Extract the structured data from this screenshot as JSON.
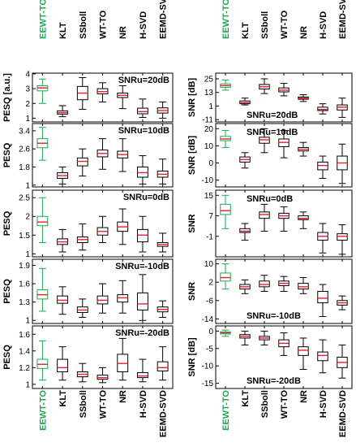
{
  "colors": {
    "highlight": "#1aa851",
    "median": "#e8202a",
    "box": "#000000"
  },
  "categories": [
    "EEWT-TO",
    "KLT",
    "SSboll",
    "WT-TO",
    "NR",
    "H-SVD",
    "EEMD-SVD"
  ],
  "highlight_index": 0,
  "chart_data": [
    {
      "type": "box",
      "column": "left",
      "row": 0,
      "ylabel": "PESQ [a.u.]",
      "annotation": "SNRu=20dB",
      "ylim": [
        0.75,
        4.05
      ],
      "yticks": [
        1,
        2,
        3,
        4
      ],
      "boxes": [
        {
          "category": "EEWT-TO",
          "min": 2.0,
          "q1": 2.85,
          "median": 3.05,
          "q3": 3.2,
          "max": 3.65
        },
        {
          "category": "KLT",
          "min": 1.1,
          "q1": 1.28,
          "median": 1.38,
          "q3": 1.5,
          "max": 1.85
        },
        {
          "category": "SSboll",
          "min": 1.6,
          "q1": 2.25,
          "median": 2.7,
          "q3": 3.15,
          "max": 3.75
        },
        {
          "category": "WT-TO",
          "min": 2.1,
          "q1": 2.65,
          "median": 2.8,
          "q3": 3.0,
          "max": 3.4
        },
        {
          "category": "NR",
          "min": 1.65,
          "q1": 2.4,
          "median": 2.55,
          "q3": 2.7,
          "max": 3.2
        },
        {
          "category": "H-SVD",
          "min": 1.05,
          "q1": 1.3,
          "median": 1.45,
          "q3": 1.68,
          "max": 2.3
        },
        {
          "category": "EEMD-SVD",
          "min": 1.0,
          "q1": 1.35,
          "median": 1.52,
          "q3": 1.7,
          "max": 2.1
        }
      ]
    },
    {
      "type": "box",
      "column": "left",
      "row": 1,
      "ylabel": "PESQ",
      "annotation": "SNRu=10dB",
      "ylim": [
        0.92,
        3.72
      ],
      "yticks": [
        1.0,
        1.8,
        2.6,
        3.4
      ],
      "boxes": [
        {
          "category": "EEWT-TO",
          "min": 2.1,
          "q1": 2.65,
          "median": 2.85,
          "q3": 3.05,
          "max": 3.55
        },
        {
          "category": "KLT",
          "min": 1.05,
          "q1": 1.3,
          "median": 1.42,
          "q3": 1.55,
          "max": 1.8
        },
        {
          "category": "SSboll",
          "min": 1.4,
          "q1": 1.85,
          "median": 2.05,
          "q3": 2.2,
          "max": 2.6
        },
        {
          "category": "WT-TO",
          "min": 1.7,
          "q1": 2.25,
          "median": 2.4,
          "q3": 2.55,
          "max": 3.05
        },
        {
          "category": "NR",
          "min": 1.6,
          "q1": 2.2,
          "median": 2.35,
          "q3": 2.5,
          "max": 3.05
        },
        {
          "category": "H-SVD",
          "min": 1.05,
          "q1": 1.35,
          "median": 1.55,
          "q3": 1.8,
          "max": 2.3
        },
        {
          "category": "EEMD-SVD",
          "min": 1.05,
          "q1": 1.35,
          "median": 1.48,
          "q3": 1.62,
          "max": 2.15
        }
      ]
    },
    {
      "type": "box",
      "column": "left",
      "row": 2,
      "ylabel": "PESQ",
      "annotation": "SNRu=0dB",
      "ylim": [
        0.92,
        2.7
      ],
      "yticks": [
        1.0,
        1.5,
        2.0,
        2.5
      ],
      "boxes": [
        {
          "category": "EEWT-TO",
          "min": 1.3,
          "q1": 1.75,
          "median": 1.85,
          "q3": 2.0,
          "max": 2.5
        },
        {
          "category": "KLT",
          "min": 1.05,
          "q1": 1.25,
          "median": 1.32,
          "q3": 1.4,
          "max": 1.65
        },
        {
          "category": "SSboll",
          "min": 1.1,
          "q1": 1.3,
          "median": 1.38,
          "q3": 1.45,
          "max": 1.8
        },
        {
          "category": "WT-TO",
          "min": 1.3,
          "q1": 1.5,
          "median": 1.6,
          "q3": 1.7,
          "max": 2.0
        },
        {
          "category": "NR",
          "min": 1.25,
          "q1": 1.6,
          "median": 1.72,
          "q3": 1.85,
          "max": 2.2
        },
        {
          "category": "H-SVD",
          "min": 1.05,
          "q1": 1.32,
          "median": 1.5,
          "q3": 1.65,
          "max": 2.0
        },
        {
          "category": "EEMD-SVD",
          "min": 1.05,
          "q1": 1.2,
          "median": 1.25,
          "q3": 1.3,
          "max": 1.55
        }
      ]
    },
    {
      "type": "box",
      "column": "left",
      "row": 3,
      "ylabel": "PESQ",
      "annotation": "SNRu=-10dB",
      "ylim": [
        0.95,
        2.0
      ],
      "yticks": [
        1.0,
        1.3,
        1.6,
        1.9
      ],
      "boxes": [
        {
          "category": "EEWT-TO",
          "min": 1.15,
          "q1": 1.35,
          "median": 1.42,
          "q3": 1.5,
          "max": 1.85
        },
        {
          "category": "KLT",
          "min": 1.1,
          "q1": 1.28,
          "median": 1.33,
          "q3": 1.4,
          "max": 1.55
        },
        {
          "category": "SSboll",
          "min": 1.05,
          "q1": 1.13,
          "median": 1.17,
          "q3": 1.22,
          "max": 1.35
        },
        {
          "category": "WT-TO",
          "min": 1.12,
          "q1": 1.27,
          "median": 1.33,
          "q3": 1.4,
          "max": 1.6
        },
        {
          "category": "NR",
          "min": 1.12,
          "q1": 1.3,
          "median": 1.37,
          "q3": 1.42,
          "max": 1.65
        },
        {
          "category": "H-SVD",
          "min": 1.0,
          "q1": 1.17,
          "median": 1.27,
          "q3": 1.45,
          "max": 1.75
        },
        {
          "category": "EEMD-SVD",
          "min": 1.05,
          "q1": 1.14,
          "median": 1.18,
          "q3": 1.22,
          "max": 1.32
        }
      ]
    },
    {
      "type": "box",
      "column": "left",
      "row": 4,
      "ylabel": "PESQ",
      "annotation": "SNRu=-20dB",
      "ylim": [
        0.95,
        1.7
      ],
      "yticks": [
        1.0,
        1.2,
        1.4,
        1.6
      ],
      "boxes": [
        {
          "category": "EEWT-TO",
          "min": 1.05,
          "q1": 1.19,
          "median": 1.24,
          "q3": 1.3,
          "max": 1.52
        },
        {
          "category": "KLT",
          "min": 1.05,
          "q1": 1.15,
          "median": 1.2,
          "q3": 1.3,
          "max": 1.45
        },
        {
          "category": "SSboll",
          "min": 1.03,
          "q1": 1.09,
          "median": 1.12,
          "q3": 1.15,
          "max": 1.25
        },
        {
          "category": "WT-TO",
          "min": 1.02,
          "q1": 1.06,
          "median": 1.08,
          "q3": 1.11,
          "max": 1.2
        },
        {
          "category": "NR",
          "min": 1.05,
          "q1": 1.15,
          "median": 1.25,
          "q3": 1.36,
          "max": 1.55
        },
        {
          "category": "H-SVD",
          "min": 1.03,
          "q1": 1.08,
          "median": 1.1,
          "q3": 1.14,
          "max": 1.3
        },
        {
          "category": "EEMD-SVD",
          "min": 1.05,
          "q1": 1.16,
          "median": 1.2,
          "q3": 1.27,
          "max": 1.45
        }
      ]
    },
    {
      "type": "box",
      "column": "right",
      "row": 0,
      "ylabel": "SNR [dB]",
      "annotation": "SNRu=20dB",
      "ylim": [
        -13,
        30
      ],
      "yticks": [
        -11,
        1,
        13,
        25
      ],
      "boxes": [
        {
          "category": "EEWT-TO",
          "min": 15,
          "q1": 17.5,
          "median": 19,
          "q3": 20.5,
          "max": 24
        },
        {
          "category": "KLT",
          "min": 2,
          "q1": 3,
          "median": 4,
          "q3": 5.5,
          "max": 8
        },
        {
          "category": "SSboll",
          "min": 12,
          "q1": 16,
          "median": 18,
          "q3": 20,
          "max": 25
        },
        {
          "category": "WT-TO",
          "min": 10,
          "q1": 13.5,
          "median": 15,
          "q3": 17,
          "max": 21
        },
        {
          "category": "NR",
          "min": 5,
          "q1": 7,
          "median": 8,
          "q3": 9,
          "max": 11
        },
        {
          "category": "H-SVD",
          "min": -6,
          "q1": -3,
          "median": -2,
          "q3": 0,
          "max": 3
        },
        {
          "category": "EEMD-SVD",
          "min": -9,
          "q1": -2.5,
          "median": 0,
          "q3": 2,
          "max": 8
        }
      ]
    },
    {
      "type": "box",
      "column": "right",
      "row": 1,
      "ylabel": "SNR [dB]",
      "annotation": "SNRu=10dB",
      "ylim": [
        -14,
        23
      ],
      "yticks": [
        -10,
        0,
        10,
        20
      ],
      "boxes": [
        {
          "category": "EEWT-TO",
          "min": 9,
          "q1": 13,
          "median": 14,
          "q3": 15.5,
          "max": 19
        },
        {
          "category": "KLT",
          "min": -3,
          "q1": 0.5,
          "median": 2,
          "q3": 3.5,
          "max": 6
        },
        {
          "category": "SSboll",
          "min": 6,
          "q1": 11.5,
          "median": 13.5,
          "q3": 15,
          "max": 20
        },
        {
          "category": "WT-TO",
          "min": 3,
          "q1": 9.5,
          "median": 12,
          "q3": 14,
          "max": 19
        },
        {
          "category": "NR",
          "min": 4,
          "q1": 7,
          "median": 8,
          "q3": 9,
          "max": 12
        },
        {
          "category": "H-SVD",
          "min": -9,
          "q1": -4,
          "median": -1.5,
          "q3": 0.5,
          "max": 4
        },
        {
          "category": "EEMD-SVD",
          "min": -12,
          "q1": -4,
          "median": 0,
          "q3": 4,
          "max": 11
        }
      ]
    },
    {
      "type": "box",
      "column": "right",
      "row": 2,
      "ylabel": "SNR",
      "annotation": "SNRu=0dB",
      "ylim": [
        -9,
        17
      ],
      "yticks": [
        -1,
        7,
        15
      ],
      "boxes": [
        {
          "category": "EEWT-TO",
          "min": 2,
          "q1": 7.5,
          "median": 9,
          "q3": 11.5,
          "max": 15
        },
        {
          "category": "KLT",
          "min": -2.5,
          "q1": 0.5,
          "median": 1,
          "q3": 2,
          "max": 4
        },
        {
          "category": "SSboll",
          "min": 1,
          "q1": 6,
          "median": 7.5,
          "q3": 8.5,
          "max": 11.5
        },
        {
          "category": "WT-TO",
          "min": 1,
          "q1": 6,
          "median": 7,
          "q3": 8,
          "max": 10.5
        },
        {
          "category": "NR",
          "min": 2,
          "q1": 5.5,
          "median": 6,
          "q3": 7,
          "max": 8.5
        },
        {
          "category": "H-SVD",
          "min": -7.5,
          "q1": -2.5,
          "median": -1,
          "q3": 0.5,
          "max": 4
        },
        {
          "category": "EEMD-SVD",
          "min": -8,
          "q1": -2.5,
          "median": -1,
          "q3": 0,
          "max": 3.5
        }
      ]
    },
    {
      "type": "box",
      "column": "right",
      "row": 3,
      "ylabel": "SNR",
      "annotation": "SNRu=-10dB",
      "ylim": [
        -16,
        12
      ],
      "yticks": [
        -14,
        -6,
        2,
        10
      ],
      "boxes": [
        {
          "category": "EEWT-TO",
          "min": -1,
          "q1": 2.5,
          "median": 4,
          "q3": 6,
          "max": 10
        },
        {
          "category": "KLT",
          "min": -3,
          "q1": -1,
          "median": 0,
          "q3": 1,
          "max": 3
        },
        {
          "category": "SSboll",
          "min": -2,
          "q1": 0,
          "median": 1,
          "q3": 2.5,
          "max": 5
        },
        {
          "category": "WT-TO",
          "min": -2,
          "q1": 0.5,
          "median": 1.5,
          "q3": 2.5,
          "max": 4.5
        },
        {
          "category": "NR",
          "min": -3,
          "q1": -1,
          "median": 0,
          "q3": 1.5,
          "max": 4
        },
        {
          "category": "H-SVD",
          "min": -13,
          "q1": -7,
          "median": -5,
          "q3": -2,
          "max": 1
        },
        {
          "category": "EEMD-SVD",
          "min": -10,
          "q1": -8,
          "median": -7,
          "q3": -6,
          "max": -4
        }
      ]
    },
    {
      "type": "box",
      "column": "right",
      "row": 4,
      "ylabel": "SNR [dB]",
      "annotation": "SNRu=-20dB",
      "ylim": [
        -16.5,
        1.5
      ],
      "yticks": [
        -15,
        -10,
        -5,
        0
      ],
      "boxes": [
        {
          "category": "EEWT-TO",
          "min": -1.5,
          "q1": -0.8,
          "median": -0.5,
          "q3": -0.2,
          "max": 0.3
        },
        {
          "category": "KLT",
          "min": -4,
          "q1": -2,
          "median": -1.5,
          "q3": -1,
          "max": 0
        },
        {
          "category": "SSboll",
          "min": -4,
          "q1": -2.5,
          "median": -2,
          "q3": -1.5,
          "max": 0
        },
        {
          "category": "WT-TO",
          "min": -7,
          "q1": -4.5,
          "median": -3.5,
          "q3": -2.5,
          "max": -0.5
        },
        {
          "category": "NR",
          "min": -11,
          "q1": -7,
          "median": -5.5,
          "q3": -4.5,
          "max": -2
        },
        {
          "category": "H-SVD",
          "min": -12,
          "q1": -8.5,
          "median": -7,
          "q3": -6,
          "max": -2.5
        },
        {
          "category": "EEMD-SVD",
          "min": -13.5,
          "q1": -10.5,
          "median": -9,
          "q3": -7.5,
          "max": -4
        }
      ]
    }
  ]
}
